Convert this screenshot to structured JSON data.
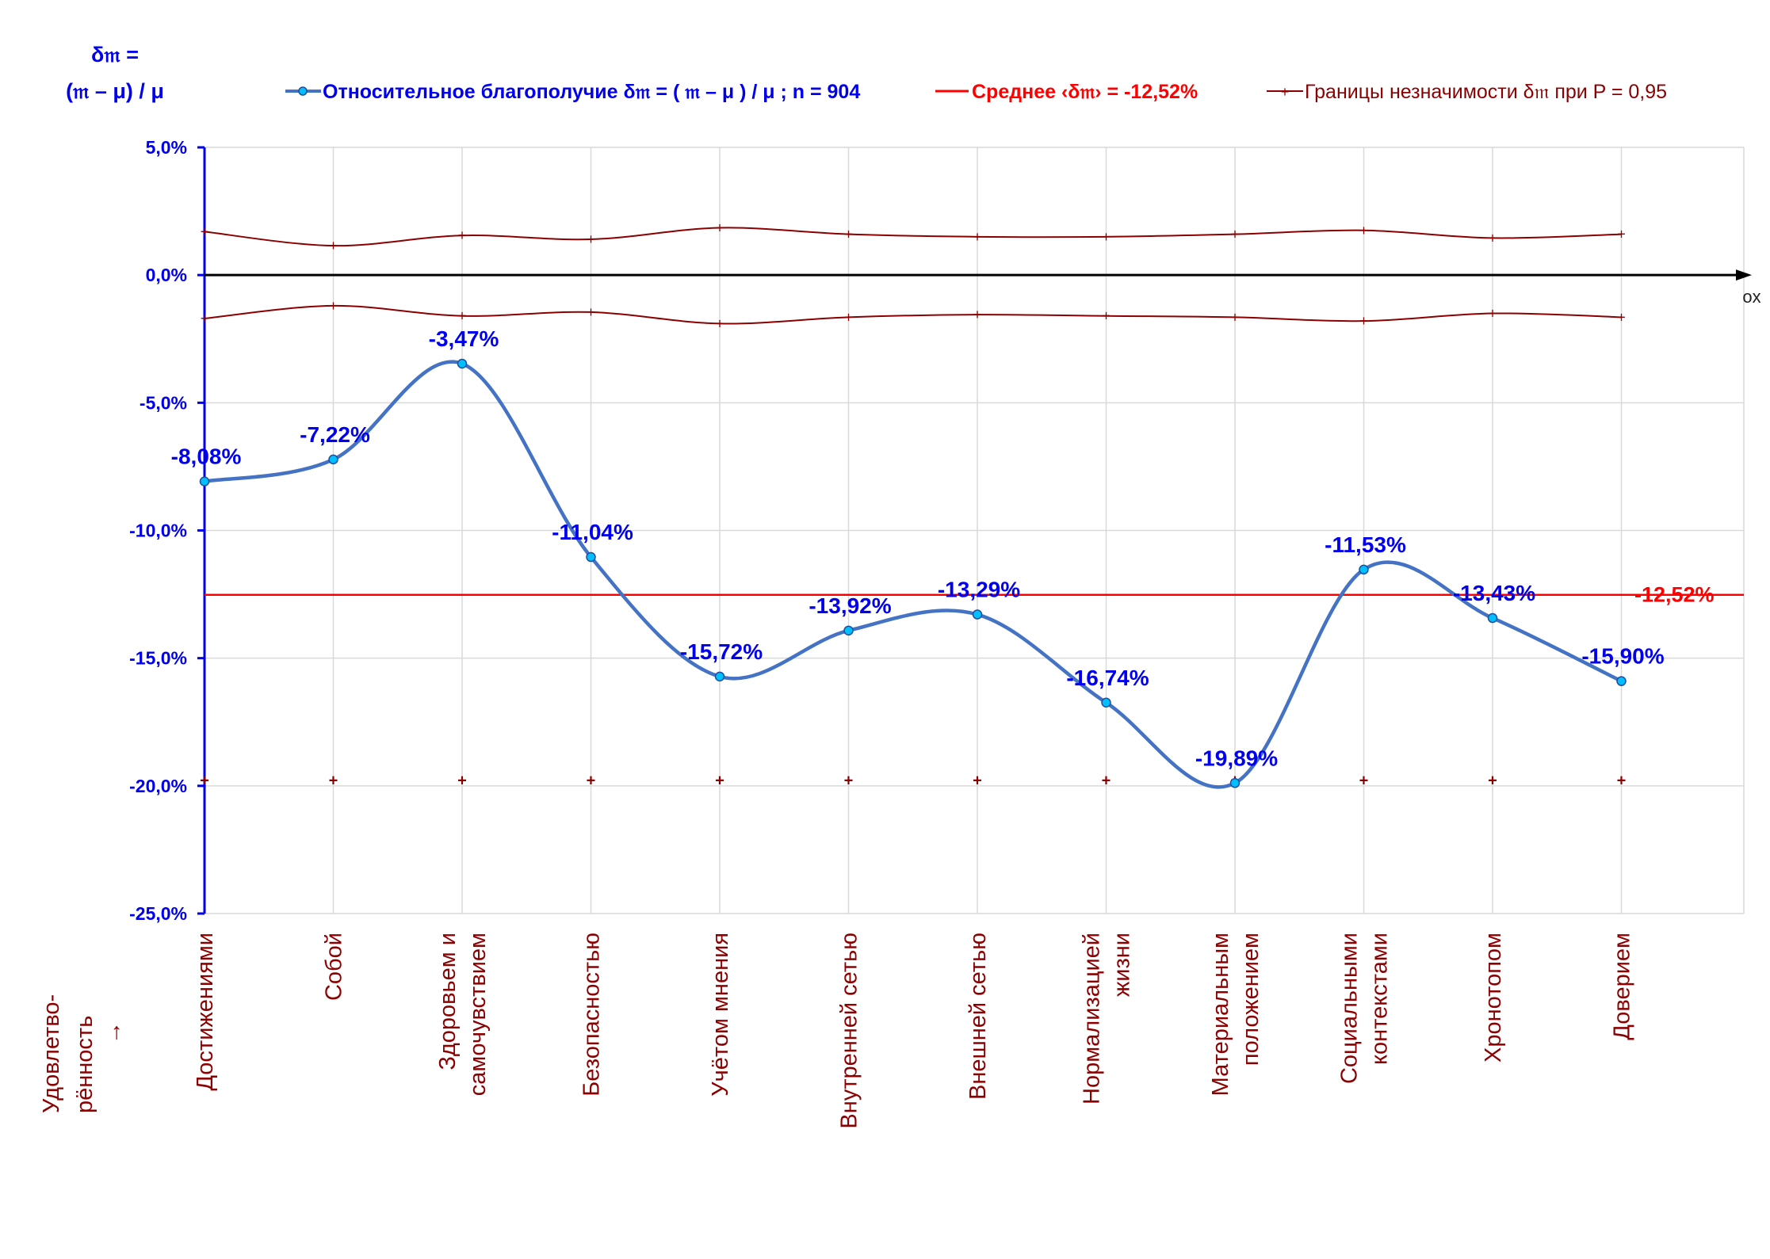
{
  "header": {
    "ylabel_line1": "δ𝔪 =",
    "ylabel_line2": "(𝔪 – μ) / μ",
    "x_axis_name": "ox",
    "side_label": [
      "Удовлетво-",
      "рённость",
      "→"
    ]
  },
  "legend": {
    "series_label": "Относительное благополучие δ𝔪 = ( 𝔪 – μ ) / μ ; n = 904",
    "mean_label": "Среднее ‹δ𝔪› = -12,52%",
    "bounds_label": "Границы незначимости δ𝔪 при P = 0,95"
  },
  "colors": {
    "series": "#4472c4",
    "marker_fill": "#00bfff",
    "mean": "#ff0000",
    "bounds": "#8b0000",
    "axis": "#0000ee",
    "zero_axis": "#000000",
    "grid": "#d9d9d9"
  },
  "chart_data": {
    "type": "line",
    "categories": [
      [
        "Достижениями"
      ],
      [
        "Собой"
      ],
      [
        "Здоровьем и",
        "самочувствием"
      ],
      [
        "Безопасностью"
      ],
      [
        "Учётом мнения"
      ],
      [
        "Внутренней сетью"
      ],
      [
        "Внешней сетью"
      ],
      [
        "Нормализацией",
        "жизни"
      ],
      [
        "Материальным",
        "положением"
      ],
      [
        "Социальными",
        "контекстами"
      ],
      [
        "Хронотопом"
      ],
      [
        "Доверием"
      ]
    ],
    "ylim": [
      -25,
      5
    ],
    "yticks": [
      5,
      0,
      -5,
      -10,
      -15,
      -20,
      -25
    ],
    "ytick_labels": [
      "5,0%",
      "0,0%",
      "-5,0%",
      "-10,0%",
      "-15,0%",
      "-20,0%",
      "-25,0%"
    ],
    "grid": true,
    "series": [
      {
        "name": "Относительное благополучие δ𝔪 = ( 𝔪 – μ ) / μ ; n = 904",
        "values": [
          -8.08,
          -7.22,
          -3.47,
          -11.04,
          -15.72,
          -13.92,
          -13.29,
          -16.74,
          -19.89,
          -11.53,
          -13.43,
          -15.9
        ],
        "labels": [
          "-8,08%",
          "-7,22%",
          "-3,47%",
          "-11,04%",
          "-15,72%",
          "-13,92%",
          "-13,29%",
          "-16,74%",
          "-19,89%",
          "-11,53%",
          "-13,43%",
          "-15,90%"
        ]
      }
    ],
    "mean": {
      "value": -12.52,
      "label": "-12,52%"
    },
    "bounds_upper": [
      1.7,
      1.15,
      1.55,
      1.4,
      1.85,
      1.6,
      1.5,
      1.5,
      1.6,
      1.75,
      1.45,
      1.6
    ],
    "bounds_lower": [
      -1.7,
      -1.2,
      -1.6,
      -1.45,
      -1.9,
      -1.65,
      -1.55,
      -1.6,
      -1.65,
      -1.8,
      -1.5,
      -1.65
    ],
    "baseline_markers": -19.8
  }
}
